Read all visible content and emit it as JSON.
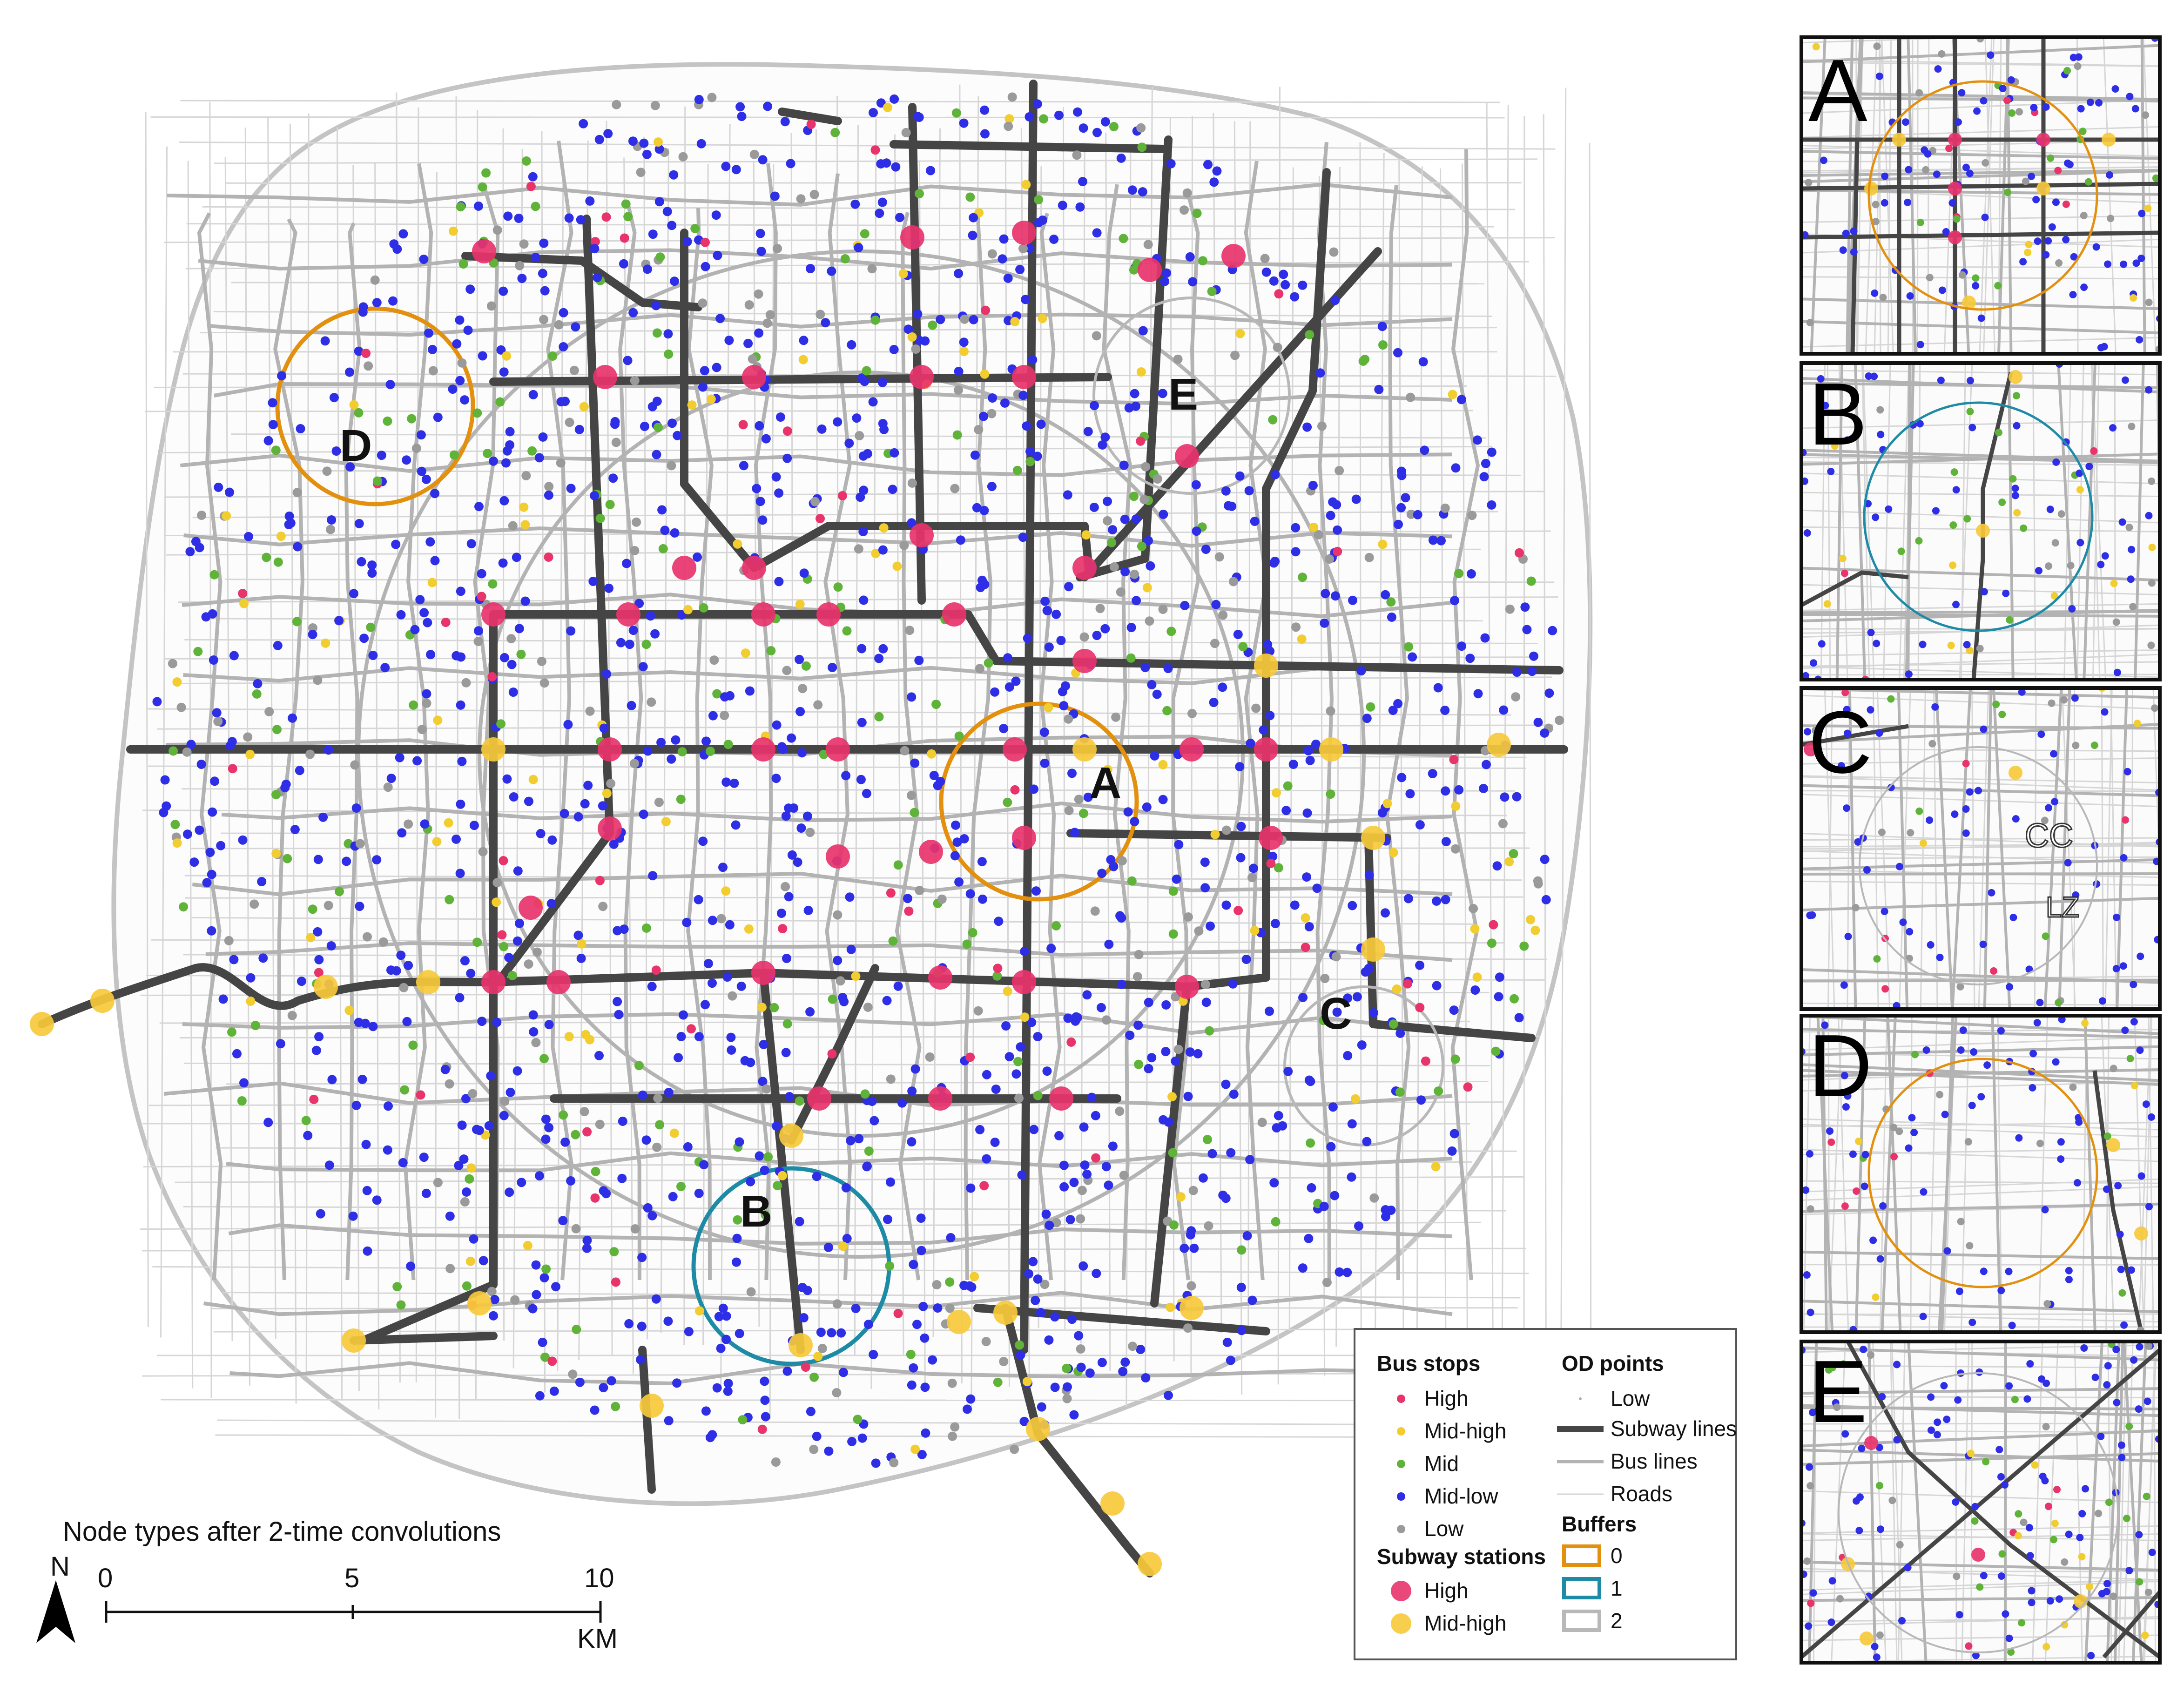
{
  "map_title": "Node types after 2-time convolutions",
  "north_label": "N",
  "scale": {
    "ticks": [
      "0",
      "5",
      "10"
    ],
    "unit": "KM"
  },
  "area_labels": [
    "A",
    "B",
    "C",
    "D",
    "E"
  ],
  "inset_panels": [
    {
      "letter": "A",
      "buffer": "0"
    },
    {
      "letter": "B",
      "buffer": "1"
    },
    {
      "letter": "C",
      "buffer": "2"
    },
    {
      "letter": "D",
      "buffer": "0"
    },
    {
      "letter": "E",
      "buffer": "2"
    }
  ],
  "inset_c_labels": [
    "CC",
    "LZ"
  ],
  "legend": {
    "bus_stops": {
      "title": "Bus stops",
      "items": [
        {
          "label": "High",
          "color": "#e8336b"
        },
        {
          "label": "Mid-high",
          "color": "#f2cd30"
        },
        {
          "label": "Mid",
          "color": "#5fb338"
        },
        {
          "label": "Mid-low",
          "color": "#2e2ee6"
        },
        {
          "label": "Low",
          "color": "#9a9a9a"
        }
      ]
    },
    "subway_stations": {
      "title": "Subway stations",
      "items": [
        {
          "label": "High",
          "color": "#e8336b"
        },
        {
          "label": "Mid-high",
          "color": "#f7c93a"
        }
      ]
    },
    "od_points": {
      "title": "OD points",
      "items": [
        {
          "label": "Low"
        },
        {
          "label": "Subway lines"
        },
        {
          "label": "Bus lines"
        },
        {
          "label": "Roads"
        }
      ]
    },
    "buffers": {
      "title": "Buffers",
      "items": [
        {
          "label": "0",
          "color": "#e3900e"
        },
        {
          "label": "1",
          "color": "#1d8aa6"
        },
        {
          "label": "2",
          "color": "#b8b8b8"
        }
      ]
    }
  },
  "colors": {
    "subway_line": "#454545",
    "bus_line": "#b3b3b3",
    "road": "#d6d6d6",
    "buffer_0": "#e3900e",
    "buffer_1": "#1d8aa6",
    "buffer_2": "#b8b8b8"
  }
}
